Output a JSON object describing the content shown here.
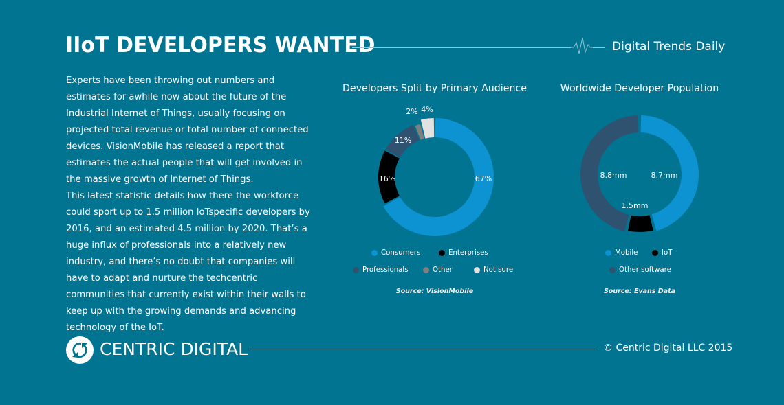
{
  "header": {
    "title": "IIoT DEVELOPERS WANTED",
    "brand": "Digital Trends Daily",
    "pulse_icon": "heartbeat-line-icon"
  },
  "article": {
    "paragraphs": [
      "Experts have been throwing out numbers and estimates for awhile now about the future of the Industrial Internet of Things, usually focusing on projected total revenue or total number of connected devices. VisionMobile has released a report that estimates the actual people that will get involved in the massive growth of Internet of Things.",
      "This latest statistic details how there the workforce could sport up to 1.5 million IoTspecific developers by 2016, and an estimated 4.5 million by 2020. That’s a huge influx of professionals into a relatively new industry, and there’s no doubt that companies will have to adapt and nurture the techcentric communities that currently exist within their walls to keep up with the growing demands and advancing technology of the IoT."
    ]
  },
  "colors": {
    "background": "#007491",
    "consumers": "#0d92d2",
    "enterprises": "#000000",
    "professionals": "#2e5270",
    "other": "#7f7f7f",
    "not_sure": "#e2e2e2",
    "mobile": "#0d92d2",
    "iot": "#000000",
    "other_software": "#2e5270",
    "rule_line": "#8fc7d6"
  },
  "chart_data": [
    {
      "type": "pie",
      "title": "Developers Split by Primary Audience",
      "categories": [
        "Consumers",
        "Enterprises",
        "Professionals",
        "Other",
        "Not sure"
      ],
      "values": [
        67,
        16,
        11,
        2,
        4
      ],
      "labels": [
        "67%",
        "16%",
        "11%",
        "2%",
        "4%"
      ],
      "colors": [
        "#0d92d2",
        "#000000",
        "#2e5270",
        "#7f7f7f",
        "#e2e2e2"
      ],
      "unit": "%",
      "donut": true,
      "legend_position": "bottom",
      "source": "Source: VisionMobile"
    },
    {
      "type": "pie",
      "title": "Worldwide Developer Population",
      "categories": [
        "Mobile",
        "IoT",
        "Other software"
      ],
      "values": [
        8.7,
        1.5,
        8.8
      ],
      "labels": [
        "8.7mm",
        "1.5mm",
        "8.8mm"
      ],
      "colors": [
        "#0d92d2",
        "#000000",
        "#2e5270"
      ],
      "unit": "million",
      "donut": true,
      "legend_position": "bottom",
      "source": "Source: Evans Data"
    }
  ],
  "footer": {
    "logo_text": "CENTRIC DIGITAL",
    "logo_icon": "centric-digital-logo-icon",
    "copyright": "© Centric Digital LLC 2015"
  }
}
